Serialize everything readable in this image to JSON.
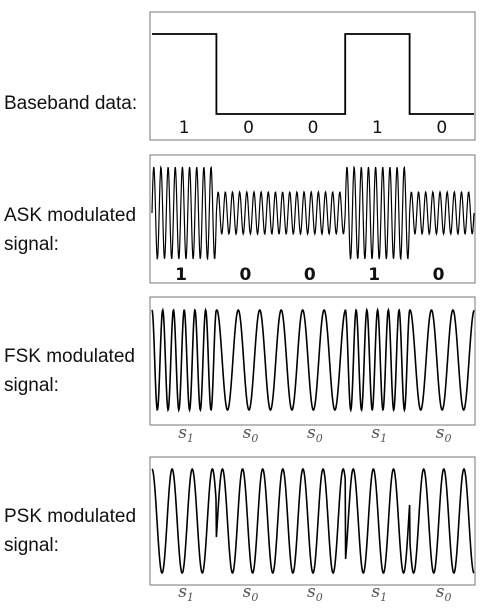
{
  "panels": [
    {
      "id": "baseband",
      "label_lines": [
        "Baseband data:"
      ],
      "bits": [
        "1",
        "0",
        "0",
        "1",
        "0"
      ],
      "bit_style": "thin"
    },
    {
      "id": "ask",
      "label_lines": [
        "ASK modulated",
        "signal:"
      ],
      "bits": [
        "1",
        "0",
        "0",
        "1",
        "0"
      ],
      "bit_style": "bold"
    },
    {
      "id": "fsk",
      "label_lines": [
        "FSK modulated",
        "signal:"
      ],
      "symbols": [
        {
          "base": "s",
          "sub": "1"
        },
        {
          "base": "s",
          "sub": "0"
        },
        {
          "base": "s",
          "sub": "0"
        },
        {
          "base": "s",
          "sub": "1"
        },
        {
          "base": "s",
          "sub": "0"
        }
      ]
    },
    {
      "id": "psk",
      "label_lines": [
        "PSK modulated",
        "signal:"
      ],
      "symbols": [
        {
          "base": "s",
          "sub": "1"
        },
        {
          "base": "s",
          "sub": "0"
        },
        {
          "base": "s",
          "sub": "0"
        },
        {
          "base": "s",
          "sub": "1"
        },
        {
          "base": "s",
          "sub": "0"
        }
      ]
    }
  ],
  "colors": {
    "trace": "#000000",
    "frame": "#777777",
    "text": "#111111",
    "symbol": "#555555"
  }
}
